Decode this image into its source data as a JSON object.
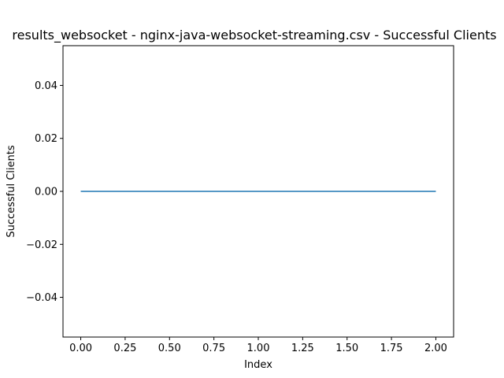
{
  "chart_data": {
    "type": "line",
    "title": "results_websocket - nginx-java-websocket-streaming.csv - Successful Clients",
    "xlabel": "Index",
    "ylabel": "Successful Clients",
    "x": [
      0,
      1,
      2
    ],
    "series": [
      {
        "values": [
          0,
          0,
          0
        ],
        "color": "#1f77b4"
      }
    ],
    "xlim": [
      -0.1,
      2.1
    ],
    "ylim": [
      -0.055,
      0.055
    ],
    "xticks": [
      0.0,
      0.25,
      0.5,
      0.75,
      1.0,
      1.25,
      1.5,
      1.75,
      2.0
    ],
    "xtick_labels": [
      "0.00",
      "0.25",
      "0.50",
      "0.75",
      "1.00",
      "1.25",
      "1.50",
      "1.75",
      "2.00"
    ],
    "yticks": [
      -0.04,
      -0.02,
      0.0,
      0.02,
      0.04
    ],
    "ytick_labels": [
      "−0.04",
      "−0.02",
      "0.00",
      "0.02",
      "0.04"
    ],
    "grid": false,
    "legend": false
  }
}
